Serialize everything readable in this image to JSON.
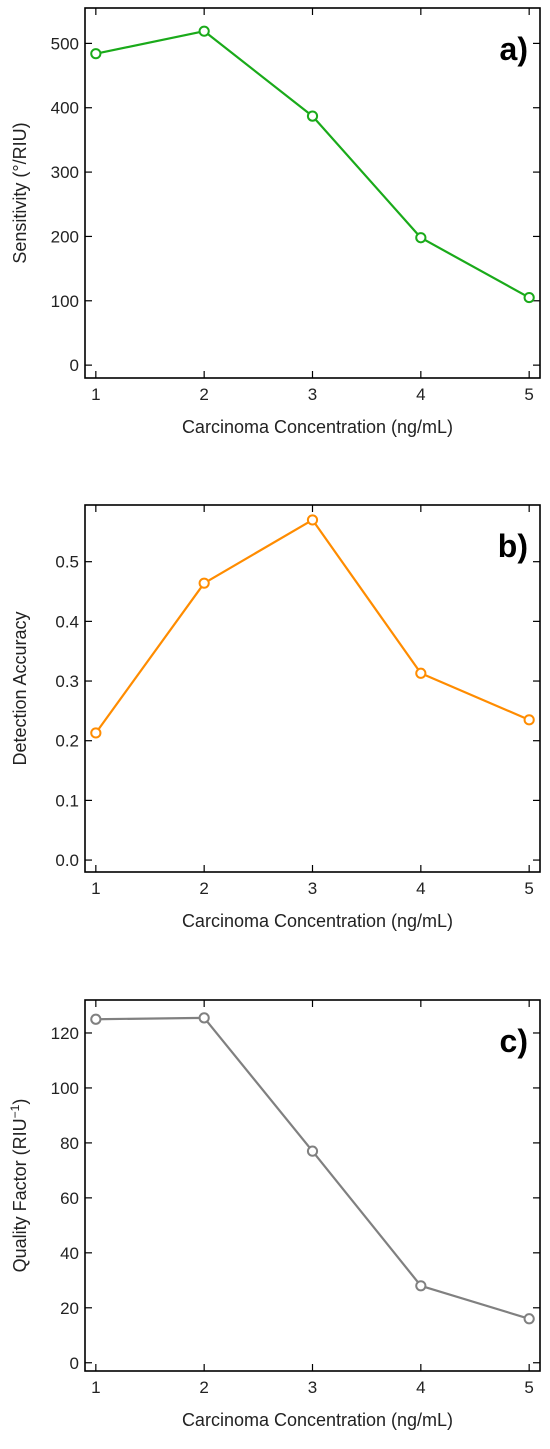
{
  "chart_data": [
    {
      "type": "line",
      "panel_label": "a)",
      "xlabel": "Carcinoma Concentration (ng/mL)",
      "ylabel": "Sensitivity (°/RIU)",
      "x": [
        1,
        2,
        3,
        4,
        5
      ],
      "series": [
        {
          "values": [
            484,
            519,
            387,
            198,
            105
          ],
          "color": "#1aaa1a"
        }
      ],
      "xlim": [
        0.9,
        5.1
      ],
      "ylim": [
        -20,
        555
      ],
      "xticks": [
        1,
        2,
        3,
        4,
        5
      ],
      "yticks": [
        0,
        100,
        200,
        300,
        400,
        500
      ],
      "ytick_labels": [
        "0",
        "100",
        "200",
        "300",
        "400",
        "500"
      ],
      "marker": "open-circle",
      "grid": false
    },
    {
      "type": "line",
      "panel_label": "b)",
      "xlabel": "Carcinoma Concentration (ng/mL)",
      "ylabel": "Detection Accuracy",
      "x": [
        1,
        2,
        3,
        4,
        5
      ],
      "series": [
        {
          "values": [
            0.213,
            0.464,
            0.57,
            0.313,
            0.235
          ],
          "color": "#ff8c00"
        }
      ],
      "xlim": [
        0.9,
        5.1
      ],
      "ylim": [
        -0.02,
        0.595
      ],
      "xticks": [
        1,
        2,
        3,
        4,
        5
      ],
      "yticks": [
        0,
        0.1,
        0.2,
        0.3,
        0.4,
        0.5
      ],
      "ytick_labels": [
        "0.0",
        "0.1",
        "0.2",
        "0.3",
        "0.4",
        "0.5"
      ],
      "marker": "open-circle",
      "grid": false
    },
    {
      "type": "line",
      "panel_label": "c)",
      "xlabel": "Carcinoma Concentration (ng/mL)",
      "ylabel": "Quality Factor (RIU",
      "ylabel_sup": "−1",
      "ylabel_end": ")",
      "x": [
        1,
        2,
        3,
        4,
        5
      ],
      "series": [
        {
          "values": [
            125,
            125.5,
            77,
            28,
            16
          ],
          "color": "#808080"
        }
      ],
      "xlim": [
        0.9,
        5.1
      ],
      "ylim": [
        -3,
        132
      ],
      "xticks": [
        1,
        2,
        3,
        4,
        5
      ],
      "yticks": [
        0,
        20,
        40,
        60,
        80,
        100,
        120
      ],
      "ytick_labels": [
        "0",
        "20",
        "40",
        "60",
        "80",
        "100",
        "120"
      ],
      "marker": "open-circle",
      "grid": false
    }
  ]
}
